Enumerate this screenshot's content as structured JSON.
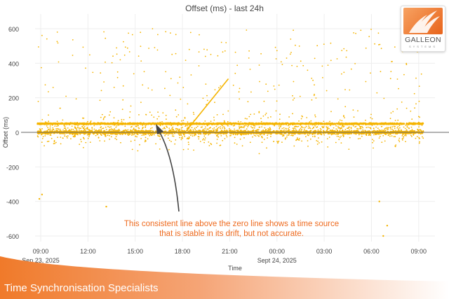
{
  "chart_data": {
    "type": "scatter",
    "title": "Offset (ms) - last 24h",
    "xlabel": "Time",
    "ylabel": "Offset (ms)",
    "ylim": [
      -650,
      650
    ],
    "yticks": [
      600,
      400,
      200,
      0,
      -200,
      -400,
      -600
    ],
    "ytick_labels": [
      "600",
      "400",
      "200",
      "0",
      "-200",
      "-400",
      "-600"
    ],
    "xlim_hours_from_start": [
      -0.2,
      24.3
    ],
    "xticks": [
      {
        "label": "09:00",
        "sublabel": "Sep 23, 2025",
        "hour": 0
      },
      {
        "label": "12:00",
        "sublabel": "",
        "hour": 3
      },
      {
        "label": "15:00",
        "sublabel": "",
        "hour": 6
      },
      {
        "label": "18:00",
        "sublabel": "",
        "hour": 9
      },
      {
        "label": "21:00",
        "sublabel": "",
        "hour": 12
      },
      {
        "label": "00:00",
        "sublabel": "Sept 24, 2025",
        "hour": 15
      },
      {
        "label": "03:00",
        "sublabel": "",
        "hour": 18
      },
      {
        "label": "06:00",
        "sublabel": "",
        "hour": 21
      },
      {
        "label": "09:00",
        "sublabel": "",
        "hour": 24
      }
    ],
    "grid": true,
    "color": "#f5b400",
    "clusters": [
      {
        "level_ms": 0,
        "spread_ms": 12,
        "density": "dense"
      },
      {
        "level_ms": 50,
        "spread_ms": 5,
        "density": "dense"
      },
      {
        "level_ms": 40,
        "spread_ms": 90,
        "density": "medium"
      },
      {
        "level_ms": 300,
        "spread_ms": 300,
        "density": "sparse"
      }
    ],
    "ramp_segment": {
      "start": {
        "time": "18:10",
        "value_ms": 0
      },
      "end": {
        "time": "20:55",
        "value_ms": 310
      }
    },
    "outliers": [
      {
        "time": "08:55",
        "value_ms": -385
      },
      {
        "time": "13:10",
        "value_ms": -430
      },
      {
        "time": "09:05",
        "value_ms": -360
      },
      {
        "time": "06:45",
        "value_ms": -600
      },
      {
        "time": "07:00",
        "value_ms": -540
      },
      {
        "time": "06:30",
        "value_ms": -400
      }
    ]
  },
  "annotation": {
    "line1": "This consistent line above the zero line shows a time source",
    "line2": "that is stable in its drift, but not accurate."
  },
  "logo": {
    "word": "GALLEON",
    "sub": "SYSTEMS"
  },
  "footer": {
    "tagline": "Time Synchronisation Specialists"
  },
  "colors": {
    "accent": "#ee6a1e",
    "points": "#f5b400",
    "arrow": "#444444"
  }
}
